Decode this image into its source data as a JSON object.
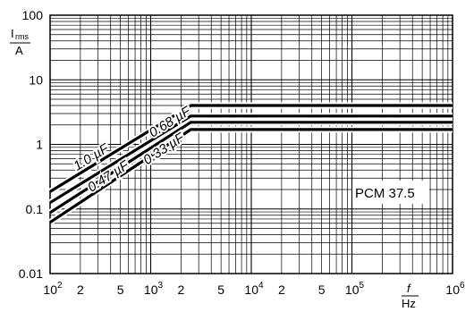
{
  "chart_data": {
    "type": "line",
    "x_scale": "log",
    "y_scale": "log",
    "xlim": [
      100,
      1000000
    ],
    "ylim": [
      0.01,
      100
    ],
    "grid": true,
    "x_tick_labels": [
      {
        "value": 100,
        "base": "10",
        "exp": "2"
      },
      {
        "value": 200,
        "base": "2",
        "exp": ""
      },
      {
        "value": 500,
        "base": "5",
        "exp": ""
      },
      {
        "value": 1000,
        "base": "10",
        "exp": "3"
      },
      {
        "value": 2000,
        "base": "2",
        "exp": ""
      },
      {
        "value": 5000,
        "base": "5",
        "exp": ""
      },
      {
        "value": 10000,
        "base": "10",
        "exp": "4"
      },
      {
        "value": 20000,
        "base": "2",
        "exp": ""
      },
      {
        "value": 50000,
        "base": "5",
        "exp": ""
      },
      {
        "value": 100000,
        "base": "10",
        "exp": "5"
      },
      {
        "value": 1000000,
        "base": "10",
        "exp": "6"
      }
    ],
    "y_tick_labels": [
      {
        "value": 100,
        "text": "100"
      },
      {
        "value": 10,
        "text": "10"
      },
      {
        "value": 1,
        "text": "1"
      },
      {
        "value": 0.1,
        "text": "0.1"
      },
      {
        "value": 0.01,
        "text": "0.01"
      }
    ],
    "ylabel": {
      "main": "I",
      "sub": "rms",
      "unit": "A"
    },
    "xlabel": {
      "main": "f",
      "unit": "Hz"
    },
    "annotation": "PCM 37.5",
    "series": [
      {
        "name": "1.0 µF",
        "x": [
          100,
          2500,
          1000000
        ],
        "y": [
          0.185,
          4.0,
          4.0
        ]
      },
      {
        "name": "0.68 µF",
        "x": [
          100,
          2500,
          1000000
        ],
        "y": [
          0.125,
          2.75,
          2.75
        ]
      },
      {
        "name": "0.47 µF",
        "x": [
          100,
          2500,
          1000000
        ],
        "y": [
          0.088,
          2.2,
          2.2
        ]
      },
      {
        "name": "0.33 µF",
        "x": [
          100,
          2500,
          1000000
        ],
        "y": [
          0.062,
          1.7,
          1.7
        ]
      }
    ]
  }
}
